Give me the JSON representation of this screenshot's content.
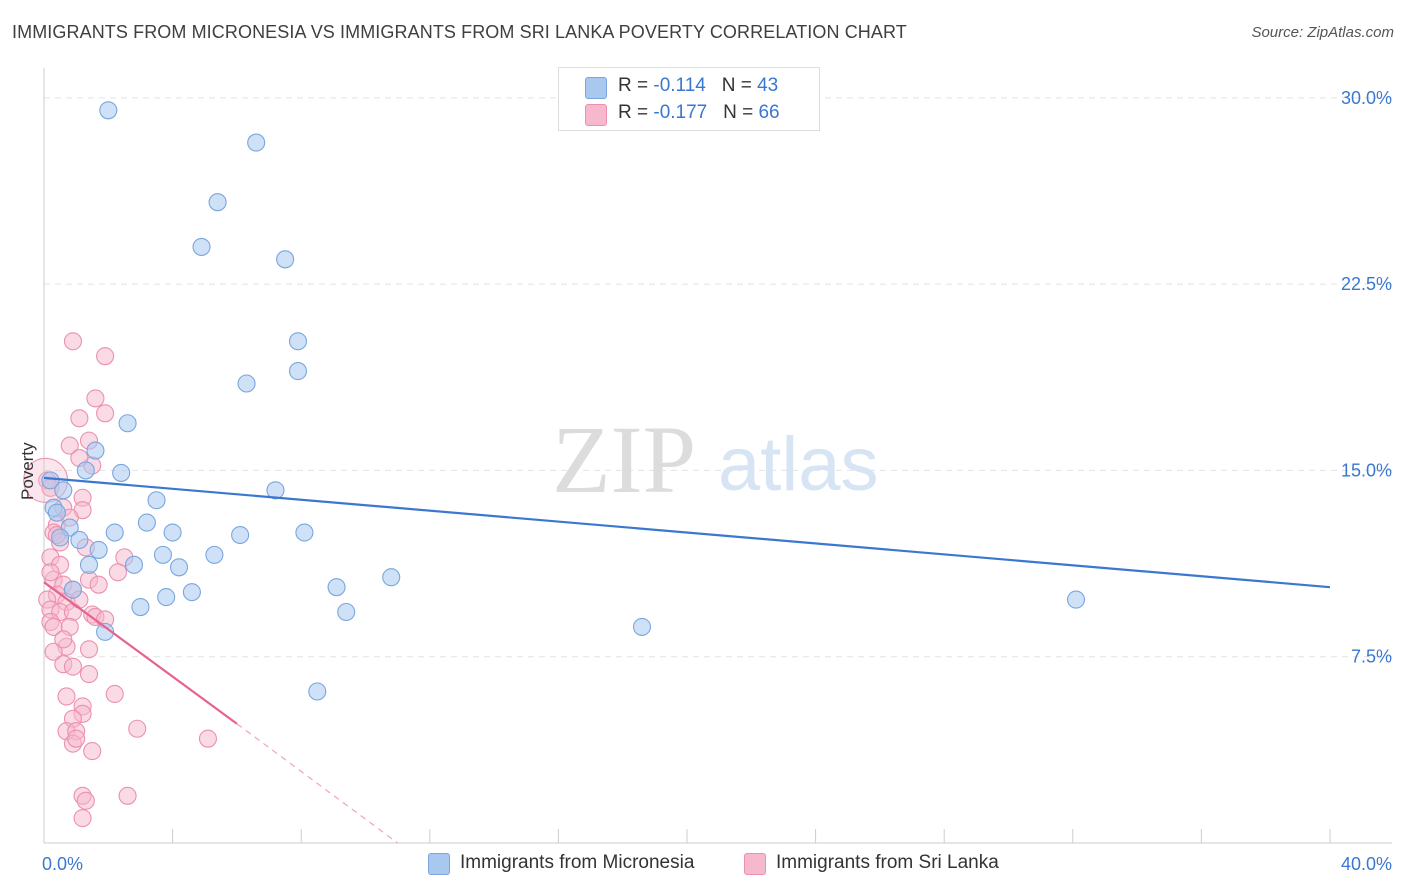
{
  "title": "IMMIGRANTS FROM MICRONESIA VS IMMIGRANTS FROM SRI LANKA POVERTY CORRELATION CHART",
  "source": "Source: ZipAtlas.com",
  "watermark": {
    "zip": "ZIP",
    "atlas": "atlas"
  },
  "legend_top": [
    {
      "r_label": "R = ",
      "r_value": "-0.114",
      "n_label": "N = ",
      "n_value": "43",
      "color": "#a8c8f0"
    },
    {
      "r_label": "R = ",
      "r_value": "-0.177",
      "n_label": "N = ",
      "n_value": "66",
      "color": "#f6b8cc"
    }
  ],
  "colors": {
    "blue": "#3a78d0",
    "pink": "#e8628e",
    "blue_fill": "#a8c8f0",
    "pink_fill": "#f6b8cc"
  },
  "chart_data": {
    "type": "scatter",
    "title": "IMMIGRANTS FROM MICRONESIA VS IMMIGRANTS FROM SRI LANKA POVERTY CORRELATION CHART",
    "xlabel": "",
    "ylabel": "Poverty",
    "xlim": [
      0,
      40
    ],
    "ylim": [
      0,
      30.8
    ],
    "x_tick_labels": [
      "0.0%",
      "40.0%"
    ],
    "y_ticks": [
      7.5,
      15.0,
      22.5,
      30.0
    ],
    "y_tick_labels": [
      "7.5%",
      "15.0%",
      "22.5%",
      "30.0%"
    ],
    "grid": true,
    "legend": "bottom",
    "series": [
      {
        "name": "Immigrants from Micronesia",
        "color": "#3a78d0",
        "trend": {
          "x1": 0,
          "y1": 14.7,
          "x2": 40,
          "y2": 10.3
        },
        "points": [
          [
            2.0,
            29.5
          ],
          [
            6.6,
            28.2
          ],
          [
            5.4,
            25.8
          ],
          [
            4.9,
            24.0
          ],
          [
            7.5,
            23.5
          ],
          [
            7.9,
            20.2
          ],
          [
            7.9,
            19.0
          ],
          [
            6.3,
            18.5
          ],
          [
            2.6,
            16.9
          ],
          [
            1.6,
            15.8
          ],
          [
            1.3,
            15.0
          ],
          [
            2.4,
            14.9
          ],
          [
            0.2,
            14.6
          ],
          [
            0.6,
            14.2
          ],
          [
            7.2,
            14.2
          ],
          [
            3.5,
            13.8
          ],
          [
            0.3,
            13.5
          ],
          [
            3.2,
            12.9
          ],
          [
            0.8,
            12.7
          ],
          [
            2.2,
            12.5
          ],
          [
            4.0,
            12.5
          ],
          [
            6.1,
            12.4
          ],
          [
            8.1,
            12.5
          ],
          [
            0.5,
            12.3
          ],
          [
            1.1,
            12.2
          ],
          [
            1.7,
            11.8
          ],
          [
            5.3,
            11.6
          ],
          [
            3.7,
            11.6
          ],
          [
            1.4,
            11.2
          ],
          [
            2.8,
            11.2
          ],
          [
            4.2,
            11.1
          ],
          [
            10.8,
            10.7
          ],
          [
            0.9,
            10.2
          ],
          [
            9.1,
            10.3
          ],
          [
            4.6,
            10.1
          ],
          [
            3.8,
            9.9
          ],
          [
            3.0,
            9.5
          ],
          [
            9.4,
            9.3
          ],
          [
            32.1,
            9.8
          ],
          [
            1.9,
            8.5
          ],
          [
            18.6,
            8.7
          ],
          [
            8.5,
            6.1
          ],
          [
            0.4,
            13.3
          ]
        ]
      },
      {
        "name": "Immigrants from Sri Lanka",
        "color": "#e8628e",
        "trend": {
          "x1": 0,
          "y1": 10.5,
          "x2": 6.0,
          "y2": 4.8,
          "dash_x2": 11.0,
          "dash_y2": 0.0
        },
        "points": [
          [
            0.1,
            14.6
          ],
          [
            0.9,
            20.2
          ],
          [
            1.9,
            19.6
          ],
          [
            1.6,
            17.9
          ],
          [
            1.9,
            17.3
          ],
          [
            1.1,
            17.1
          ],
          [
            1.4,
            16.2
          ],
          [
            0.8,
            16.0
          ],
          [
            1.5,
            15.2
          ],
          [
            1.1,
            15.5
          ],
          [
            0.2,
            14.3
          ],
          [
            1.2,
            13.9
          ],
          [
            0.6,
            13.5
          ],
          [
            1.2,
            13.4
          ],
          [
            0.4,
            12.8
          ],
          [
            0.8,
            13.1
          ],
          [
            0.3,
            12.5
          ],
          [
            0.5,
            12.1
          ],
          [
            1.3,
            11.9
          ],
          [
            0.2,
            11.5
          ],
          [
            0.5,
            11.2
          ],
          [
            2.5,
            11.5
          ],
          [
            2.3,
            10.9
          ],
          [
            1.4,
            10.6
          ],
          [
            0.3,
            10.6
          ],
          [
            0.6,
            10.4
          ],
          [
            0.9,
            10.2
          ],
          [
            0.4,
            10.0
          ],
          [
            0.1,
            9.8
          ],
          [
            0.7,
            9.7
          ],
          [
            0.2,
            9.4
          ],
          [
            0.5,
            9.3
          ],
          [
            0.9,
            9.3
          ],
          [
            1.5,
            9.2
          ],
          [
            1.6,
            9.1
          ],
          [
            0.2,
            8.9
          ],
          [
            0.3,
            8.7
          ],
          [
            0.8,
            8.7
          ],
          [
            1.9,
            9.0
          ],
          [
            0.7,
            7.9
          ],
          [
            1.4,
            7.8
          ],
          [
            0.3,
            7.7
          ],
          [
            0.6,
            7.2
          ],
          [
            0.9,
            7.1
          ],
          [
            1.4,
            6.8
          ],
          [
            0.7,
            5.9
          ],
          [
            2.2,
            6.0
          ],
          [
            1.2,
            5.5
          ],
          [
            1.2,
            5.2
          ],
          [
            0.9,
            5.0
          ],
          [
            0.7,
            4.5
          ],
          [
            1.0,
            4.5
          ],
          [
            2.9,
            4.6
          ],
          [
            5.1,
            4.2
          ],
          [
            0.9,
            4.0
          ],
          [
            1.5,
            3.7
          ],
          [
            1.2,
            1.9
          ],
          [
            1.3,
            1.7
          ],
          [
            2.6,
            1.9
          ],
          [
            1.2,
            1.0
          ],
          [
            1.0,
            4.2
          ],
          [
            0.4,
            12.4
          ],
          [
            1.1,
            9.8
          ],
          [
            0.6,
            8.2
          ],
          [
            1.7,
            10.4
          ],
          [
            0.2,
            10.9
          ]
        ]
      }
    ]
  }
}
